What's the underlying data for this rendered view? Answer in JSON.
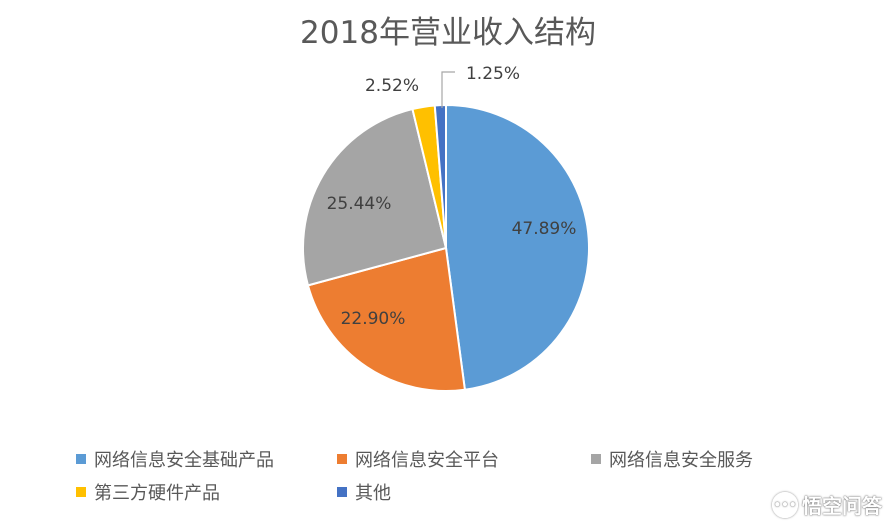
{
  "chart_data": {
    "type": "pie",
    "title": "2018年营业收入结构",
    "series": [
      {
        "name": "网络信息安全基础产品",
        "value": 47.89,
        "label": "47.89%",
        "color": "#5B9BD5"
      },
      {
        "name": "网络信息安全平台",
        "value": 22.9,
        "label": "22.90%",
        "color": "#ED7D31"
      },
      {
        "name": "网络信息安全服务",
        "value": 25.44,
        "label": "25.44%",
        "color": "#A5A5A5"
      },
      {
        "name": "第三方硬件产品",
        "value": 2.52,
        "label": "2.52%",
        "color": "#FFC000"
      },
      {
        "name": "其他",
        "value": 1.25,
        "label": "1.25%",
        "color": "#4472C4"
      }
    ],
    "start_angle_deg": 0,
    "direction": "clockwise",
    "legend_position": "bottom"
  },
  "watermark": {
    "text": "悟空问答"
  }
}
